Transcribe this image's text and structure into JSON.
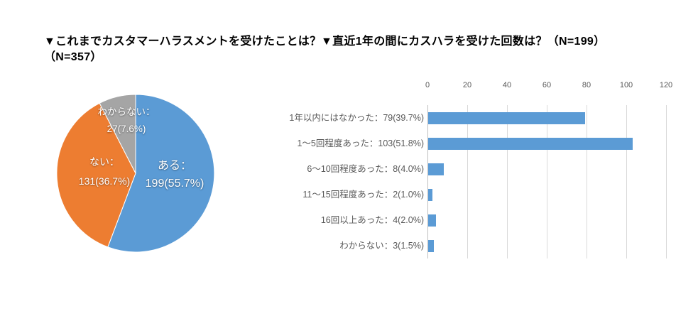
{
  "figure": {
    "background": "#ffffff"
  },
  "pie_section": {
    "title_line1": "▼これまでカスタマーハラスメントを受けたことは？",
    "title_line2": "（N=357）"
  },
  "bar_section": {
    "title": "▼直近1年の間にカスハラを受けた回数は？（N=199）"
  },
  "chart_data": [
    {
      "type": "pie",
      "title": "これまでカスタマーハラスメントを受けたことは？（N=357）",
      "n": 357,
      "direction": "clockwise",
      "start_angle_deg": 0,
      "label_text_color": "#ffffff",
      "slices": [
        {
          "name": "ある",
          "value": 199,
          "percent_label": "55.7%",
          "color": "#5B9BD5",
          "label_line1": "ある：",
          "label_line2": "199(55.7%)"
        },
        {
          "name": "ない",
          "value": 131,
          "percent_label": "36.7%",
          "color": "#ED7D31",
          "label_line1": "ない：",
          "label_line2": "131(36.7%)"
        },
        {
          "name": "わからない",
          "value": 27,
          "percent_label": "7.6%",
          "color": "#A5A5A5",
          "label_line1": "わからない：",
          "label_line2": "27(7.6%)"
        }
      ]
    },
    {
      "type": "bar",
      "orientation": "horizontal",
      "title": "直近1年の間にカスハラを受けた回数は？（N=199）",
      "n": 199,
      "categories": [
        "1年以内にはなかった",
        "1～5回程度あった",
        "6～10回程度あった",
        "11～15回程度あった",
        "16回以上あった",
        "わからない"
      ],
      "values": [
        79,
        103,
        8,
        2,
        4,
        3
      ],
      "percent_labels": [
        "39.7%",
        "51.8%",
        "4.0%",
        "1.0%",
        "2.0%",
        "1.5%"
      ],
      "row_labels": [
        "1年以内にはなかった：79(39.7%)",
        "1～5回程度あった：103(51.8%)",
        "6～10回程度あった：8(4.0%)",
        "11～15回程度あった：2(1.0%)",
        "16回以上あった：4(2.0%)",
        "わからない：3(1.5%)"
      ],
      "xlim": [
        0,
        120
      ],
      "x_ticks": [
        0,
        20,
        40,
        60,
        80,
        100,
        120
      ],
      "tick_position": "top",
      "bar_color": "#5B9BD5",
      "gridline_color": "#D9D9D9",
      "axis_text_color": "#595959",
      "grid": true,
      "legend": "none"
    }
  ]
}
